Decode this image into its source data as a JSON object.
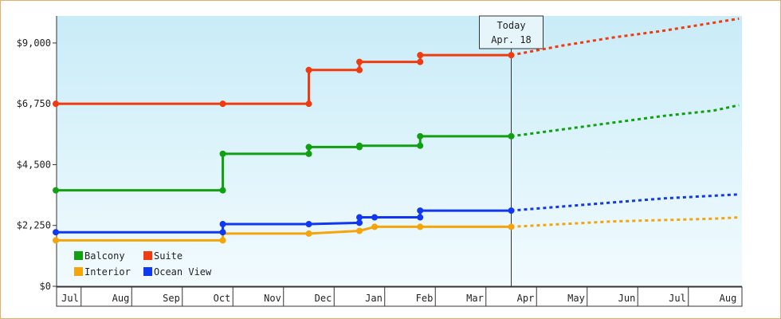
{
  "chart_data": {
    "type": "line",
    "title": "",
    "xlabel": "",
    "ylabel": "",
    "ylim": [
      0,
      10000
    ],
    "y_ticks": [
      {
        "value": 0,
        "label": "$0"
      },
      {
        "value": 2250,
        "label": "$2,250"
      },
      {
        "value": 4500,
        "label": "$4,500"
      },
      {
        "value": 6750,
        "label": "$6,750"
      },
      {
        "value": 9000,
        "label": "$9,000"
      }
    ],
    "x_range": [
      0,
      12
    ],
    "x_ticks": [
      {
        "value": 0.0,
        "label": "Jul"
      },
      {
        "value": 1.0,
        "label": "Aug"
      },
      {
        "value": 2.0,
        "label": "Sep"
      },
      {
        "value": 3.0,
        "label": "Oct"
      },
      {
        "value": 4.0,
        "label": "Nov"
      },
      {
        "value": 5.0,
        "label": "Dec"
      },
      {
        "value": 6.0,
        "label": "Jan"
      },
      {
        "value": 7.0,
        "label": "Feb"
      },
      {
        "value": 8.0,
        "label": "Mar"
      },
      {
        "value": 9.0,
        "label": "Apr"
      },
      {
        "value": 10.0,
        "label": "May"
      },
      {
        "value": 11.0,
        "label": "Jun"
      },
      {
        "value": 12.0,
        "label": "Jul"
      },
      {
        "value": 13.0,
        "label": "Aug"
      }
    ],
    "x_units": "months",
    "today": {
      "x": 9.0,
      "line1": "Today",
      "line2": "Apr. 18"
    },
    "grid": false,
    "legend_position": "bottom-left",
    "series": [
      {
        "name": "Balcony",
        "color": "#11a011",
        "points": [
          [
            0.0,
            3550
          ],
          [
            3.3,
            3550
          ],
          [
            3.3,
            4900
          ],
          [
            5.0,
            4900
          ],
          [
            5.0,
            5150
          ],
          [
            6.0,
            5150
          ],
          [
            6.0,
            5200
          ],
          [
            7.2,
            5200
          ],
          [
            7.2,
            5550
          ],
          [
            9.0,
            5550
          ]
        ],
        "projection": [
          [
            9.0,
            5550
          ],
          [
            10.0,
            5800
          ],
          [
            11.0,
            6050
          ],
          [
            12.0,
            6300
          ],
          [
            13.0,
            6500
          ],
          [
            13.5,
            6700
          ]
        ]
      },
      {
        "name": "Suite",
        "color": "#f03a10",
        "points": [
          [
            0.0,
            6750
          ],
          [
            3.3,
            6750
          ],
          [
            5.0,
            6750
          ],
          [
            5.0,
            8000
          ],
          [
            6.0,
            8000
          ],
          [
            6.0,
            8300
          ],
          [
            7.2,
            8300
          ],
          [
            7.2,
            8550
          ],
          [
            9.0,
            8550
          ]
        ],
        "projection": [
          [
            9.0,
            8550
          ],
          [
            10.0,
            8900
          ],
          [
            11.0,
            9200
          ],
          [
            12.0,
            9450
          ],
          [
            13.0,
            9750
          ],
          [
            13.5,
            9900
          ]
        ]
      },
      {
        "name": "Interior",
        "color": "#f5a50a",
        "points": [
          [
            0.0,
            1700
          ],
          [
            3.3,
            1700
          ],
          [
            3.3,
            1950
          ],
          [
            5.0,
            1950
          ],
          [
            6.0,
            2050
          ],
          [
            6.3,
            2200
          ],
          [
            7.2,
            2200
          ],
          [
            9.0,
            2200
          ]
        ],
        "projection": [
          [
            9.0,
            2200
          ],
          [
            10.0,
            2300
          ],
          [
            11.0,
            2400
          ],
          [
            12.0,
            2450
          ],
          [
            13.0,
            2500
          ],
          [
            13.5,
            2550
          ]
        ]
      },
      {
        "name": "Ocean View",
        "color": "#1038f0",
        "points": [
          [
            0.0,
            2000
          ],
          [
            3.3,
            2000
          ],
          [
            3.3,
            2300
          ],
          [
            5.0,
            2300
          ],
          [
            6.0,
            2350
          ],
          [
            6.0,
            2550
          ],
          [
            6.3,
            2550
          ],
          [
            7.2,
            2550
          ],
          [
            7.2,
            2800
          ],
          [
            9.0,
            2800
          ]
        ],
        "projection": [
          [
            9.0,
            2800
          ],
          [
            10.0,
            2950
          ],
          [
            11.0,
            3100
          ],
          [
            12.0,
            3250
          ],
          [
            13.0,
            3350
          ],
          [
            13.5,
            3400
          ]
        ]
      }
    ],
    "markers": {
      "Balcony": [
        [
          0.0,
          3550
        ],
        [
          3.3,
          3550
        ],
        [
          3.3,
          4900
        ],
        [
          5.0,
          4900
        ],
        [
          5.0,
          5150
        ],
        [
          6.0,
          5150
        ],
        [
          6.0,
          5200
        ],
        [
          7.2,
          5200
        ],
        [
          7.2,
          5550
        ],
        [
          9.0,
          5550
        ]
      ],
      "Suite": [
        [
          0.0,
          6750
        ],
        [
          3.3,
          6750
        ],
        [
          5.0,
          6750
        ],
        [
          5.0,
          8000
        ],
        [
          6.0,
          8000
        ],
        [
          6.0,
          8300
        ],
        [
          7.2,
          8300
        ],
        [
          7.2,
          8550
        ],
        [
          9.0,
          8550
        ]
      ],
      "Interior": [
        [
          0.0,
          1700
        ],
        [
          3.3,
          1700
        ],
        [
          5.0,
          1950
        ],
        [
          6.0,
          2050
        ],
        [
          6.3,
          2200
        ],
        [
          7.2,
          2200
        ],
        [
          9.0,
          2200
        ]
      ],
      "Ocean View": [
        [
          0.0,
          2000
        ],
        [
          3.3,
          2000
        ],
        [
          3.3,
          2300
        ],
        [
          5.0,
          2300
        ],
        [
          6.0,
          2350
        ],
        [
          6.0,
          2550
        ],
        [
          6.3,
          2550
        ],
        [
          7.2,
          2550
        ],
        [
          7.2,
          2800
        ],
        [
          9.0,
          2800
        ]
      ]
    }
  }
}
